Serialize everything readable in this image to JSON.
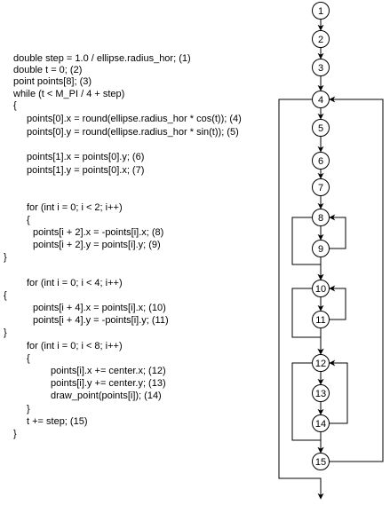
{
  "code_lines": [
    "double step = 1.0 / ellipse.radius_hor; (1)",
    "double t = 0; (2)",
    "point points[8]; (3)",
    "while (t < M_PI / 4 + step)",
    "{",
    "points[0].x = round(ellipse.radius_hor * cos(t)); (4)",
    "points[0].y = round(ellipse.radius_hor * sin(t)); (5)",
    "points[1].x = points[0].y; (6)",
    "points[1].y = points[0].x; (7)",
    "for (int i = 0; i < 2; i++)",
    "{",
    "points[i + 2].x = -points[i].x; (8)",
    "points[i + 2].y = points[i].y; (9)",
    "}",
    "for (int i = 0; i < 4; i++)",
    "{",
    "points[i + 4].x = points[i].x; (10)",
    "points[i + 4].y = -points[i].y; (11)",
    "}",
    "for (int i = 0; i < 8; i++)",
    "{",
    "points[i].x += center.x; (12)",
    "points[i].y += center.y; (13)",
    "draw_point(points[i]); (14)",
    "}",
    "t += step; (15)",
    "}"
  ],
  "nodes": [
    {
      "id": "n1",
      "label": "1"
    },
    {
      "id": "n2",
      "label": "2"
    },
    {
      "id": "n3",
      "label": "3"
    },
    {
      "id": "n4",
      "label": "4"
    },
    {
      "id": "n5",
      "label": "5"
    },
    {
      "id": "n6",
      "label": "6"
    },
    {
      "id": "n7",
      "label": "7"
    },
    {
      "id": "n8",
      "label": "8"
    },
    {
      "id": "n9",
      "label": "9"
    },
    {
      "id": "n10",
      "label": "10"
    },
    {
      "id": "n11",
      "label": "11"
    },
    {
      "id": "n12",
      "label": "12"
    },
    {
      "id": "n13",
      "label": "13"
    },
    {
      "id": "n14",
      "label": "14"
    },
    {
      "id": "n15",
      "label": "15"
    }
  ]
}
